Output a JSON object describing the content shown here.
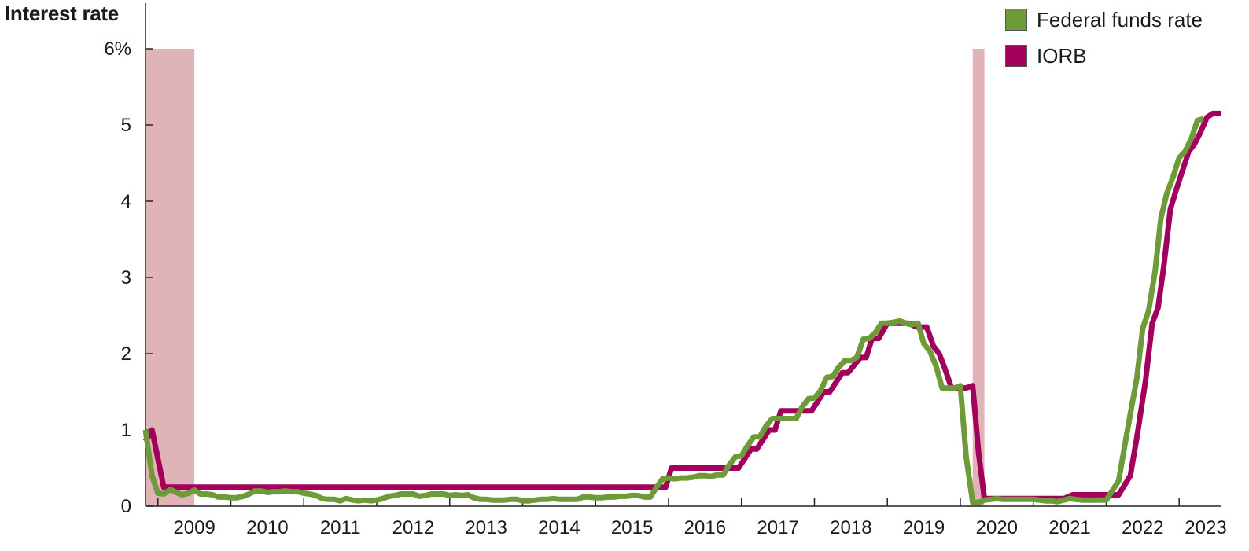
{
  "chart_data": {
    "type": "line",
    "ylabel": "Interest rate",
    "ylim": [
      0,
      6
    ],
    "y_ticks": [
      {
        "value": 0,
        "label": "0"
      },
      {
        "value": 1,
        "label": "1"
      },
      {
        "value": 2,
        "label": "2"
      },
      {
        "value": 3,
        "label": "3"
      },
      {
        "value": 4,
        "label": "4"
      },
      {
        "value": 5,
        "label": "5"
      },
      {
        "value": 6,
        "label": "6%"
      }
    ],
    "xlim": [
      2008.83,
      2023.58
    ],
    "x_ticks": [
      "2009",
      "2010",
      "2011",
      "2012",
      "2013",
      "2014",
      "2015",
      "2016",
      "2017",
      "2018",
      "2019",
      "2020",
      "2021",
      "2022",
      "2023"
    ],
    "recessions": [
      {
        "start": 2008.83,
        "end": 2009.5
      },
      {
        "start": 2020.17,
        "end": 2020.33
      }
    ],
    "recession_color": "#e0b4b6",
    "series": [
      {
        "name": "IORB",
        "color": "#a3005e",
        "points": [
          [
            2008.83,
            0.85
          ],
          [
            2008.92,
            1.0
          ],
          [
            2009.08,
            0.25
          ],
          [
            2015.96,
            0.25
          ],
          [
            2016.04,
            0.5
          ],
          [
            2016.96,
            0.5
          ],
          [
            2017.13,
            0.75
          ],
          [
            2017.21,
            0.75
          ],
          [
            2017.38,
            1.0
          ],
          [
            2017.46,
            1.0
          ],
          [
            2017.54,
            1.25
          ],
          [
            2017.96,
            1.25
          ],
          [
            2018.13,
            1.5
          ],
          [
            2018.21,
            1.5
          ],
          [
            2018.38,
            1.75
          ],
          [
            2018.46,
            1.75
          ],
          [
            2018.63,
            1.95
          ],
          [
            2018.71,
            1.95
          ],
          [
            2018.79,
            2.2
          ],
          [
            2018.88,
            2.2
          ],
          [
            2019.0,
            2.4
          ],
          [
            2019.29,
            2.4
          ],
          [
            2019.4,
            2.35
          ],
          [
            2019.54,
            2.35
          ],
          [
            2019.63,
            2.1
          ],
          [
            2019.71,
            2.0
          ],
          [
            2019.79,
            1.8
          ],
          [
            2019.88,
            1.55
          ],
          [
            2020.08,
            1.55
          ],
          [
            2020.17,
            1.58
          ],
          [
            2020.25,
            0.7
          ],
          [
            2020.33,
            0.1
          ],
          [
            2021.42,
            0.1
          ],
          [
            2021.54,
            0.15
          ],
          [
            2022.17,
            0.15
          ],
          [
            2022.33,
            0.4
          ],
          [
            2022.42,
            0.9
          ],
          [
            2022.54,
            1.65
          ],
          [
            2022.63,
            2.4
          ],
          [
            2022.71,
            2.6
          ],
          [
            2022.79,
            3.15
          ],
          [
            2022.88,
            3.9
          ],
          [
            2022.96,
            4.15
          ],
          [
            2023.13,
            4.65
          ],
          [
            2023.21,
            4.75
          ],
          [
            2023.29,
            4.9
          ],
          [
            2023.38,
            5.1
          ],
          [
            2023.46,
            5.15
          ],
          [
            2023.58,
            5.15
          ]
        ]
      },
      {
        "name": "Federal funds rate",
        "color": "#6f9a3a",
        "points": [
          [
            2008.83,
            1.0
          ],
          [
            2008.92,
            0.4
          ],
          [
            2009.0,
            0.17
          ],
          [
            2009.08,
            0.16
          ],
          [
            2009.17,
            0.22
          ],
          [
            2009.25,
            0.18
          ],
          [
            2009.33,
            0.15
          ],
          [
            2009.42,
            0.17
          ],
          [
            2009.5,
            0.21
          ],
          [
            2009.58,
            0.16
          ],
          [
            2009.67,
            0.16
          ],
          [
            2009.75,
            0.15
          ],
          [
            2009.83,
            0.12
          ],
          [
            2009.92,
            0.12
          ],
          [
            2010.0,
            0.11
          ],
          [
            2010.08,
            0.11
          ],
          [
            2010.17,
            0.13
          ],
          [
            2010.25,
            0.16
          ],
          [
            2010.33,
            0.2
          ],
          [
            2010.42,
            0.2
          ],
          [
            2010.5,
            0.18
          ],
          [
            2010.58,
            0.19
          ],
          [
            2010.67,
            0.19
          ],
          [
            2010.75,
            0.2
          ],
          [
            2010.83,
            0.19
          ],
          [
            2010.92,
            0.19
          ],
          [
            2011.0,
            0.17
          ],
          [
            2011.08,
            0.16
          ],
          [
            2011.17,
            0.14
          ],
          [
            2011.25,
            0.1
          ],
          [
            2011.33,
            0.09
          ],
          [
            2011.42,
            0.09
          ],
          [
            2011.5,
            0.07
          ],
          [
            2011.58,
            0.1
          ],
          [
            2011.67,
            0.08
          ],
          [
            2011.75,
            0.07
          ],
          [
            2011.83,
            0.08
          ],
          [
            2011.92,
            0.07
          ],
          [
            2012.0,
            0.08
          ],
          [
            2012.08,
            0.1
          ],
          [
            2012.17,
            0.13
          ],
          [
            2012.25,
            0.14
          ],
          [
            2012.33,
            0.16
          ],
          [
            2012.42,
            0.16
          ],
          [
            2012.5,
            0.16
          ],
          [
            2012.58,
            0.13
          ],
          [
            2012.67,
            0.14
          ],
          [
            2012.75,
            0.16
          ],
          [
            2012.83,
            0.16
          ],
          [
            2012.92,
            0.16
          ],
          [
            2013.0,
            0.14
          ],
          [
            2013.08,
            0.15
          ],
          [
            2013.17,
            0.14
          ],
          [
            2013.25,
            0.15
          ],
          [
            2013.33,
            0.11
          ],
          [
            2013.42,
            0.09
          ],
          [
            2013.5,
            0.09
          ],
          [
            2013.58,
            0.08
          ],
          [
            2013.67,
            0.08
          ],
          [
            2013.75,
            0.08
          ],
          [
            2013.83,
            0.09
          ],
          [
            2013.92,
            0.09
          ],
          [
            2014.0,
            0.07
          ],
          [
            2014.08,
            0.07
          ],
          [
            2014.17,
            0.08
          ],
          [
            2014.25,
            0.09
          ],
          [
            2014.33,
            0.09
          ],
          [
            2014.42,
            0.1
          ],
          [
            2014.5,
            0.09
          ],
          [
            2014.58,
            0.09
          ],
          [
            2014.67,
            0.09
          ],
          [
            2014.75,
            0.09
          ],
          [
            2014.83,
            0.12
          ],
          [
            2014.92,
            0.12
          ],
          [
            2015.0,
            0.11
          ],
          [
            2015.08,
            0.11
          ],
          [
            2015.17,
            0.12
          ],
          [
            2015.25,
            0.12
          ],
          [
            2015.33,
            0.13
          ],
          [
            2015.42,
            0.13
          ],
          [
            2015.5,
            0.14
          ],
          [
            2015.58,
            0.14
          ],
          [
            2015.67,
            0.12
          ],
          [
            2015.75,
            0.12
          ],
          [
            2015.83,
            0.24
          ],
          [
            2015.92,
            0.36
          ],
          [
            2016.0,
            0.37
          ],
          [
            2016.08,
            0.36
          ],
          [
            2016.17,
            0.37
          ],
          [
            2016.25,
            0.37
          ],
          [
            2016.33,
            0.38
          ],
          [
            2016.42,
            0.4
          ],
          [
            2016.5,
            0.4
          ],
          [
            2016.58,
            0.39
          ],
          [
            2016.67,
            0.41
          ],
          [
            2016.75,
            0.41
          ],
          [
            2016.83,
            0.54
          ],
          [
            2016.92,
            0.65
          ],
          [
            2017.0,
            0.66
          ],
          [
            2017.08,
            0.79
          ],
          [
            2017.17,
            0.91
          ],
          [
            2017.25,
            0.91
          ],
          [
            2017.33,
            1.04
          ],
          [
            2017.42,
            1.15
          ],
          [
            2017.5,
            1.15
          ],
          [
            2017.58,
            1.15
          ],
          [
            2017.67,
            1.15
          ],
          [
            2017.75,
            1.15
          ],
          [
            2017.83,
            1.3
          ],
          [
            2017.92,
            1.41
          ],
          [
            2018.0,
            1.42
          ],
          [
            2018.08,
            1.51
          ],
          [
            2018.17,
            1.69
          ],
          [
            2018.25,
            1.7
          ],
          [
            2018.33,
            1.82
          ],
          [
            2018.42,
            1.91
          ],
          [
            2018.5,
            1.91
          ],
          [
            2018.58,
            1.95
          ],
          [
            2018.67,
            2.19
          ],
          [
            2018.75,
            2.2
          ],
          [
            2018.83,
            2.27
          ],
          [
            2018.92,
            2.4
          ],
          [
            2019.0,
            2.4
          ],
          [
            2019.08,
            2.41
          ],
          [
            2019.17,
            2.43
          ],
          [
            2019.25,
            2.4
          ],
          [
            2019.33,
            2.38
          ],
          [
            2019.42,
            2.4
          ],
          [
            2019.5,
            2.13
          ],
          [
            2019.58,
            2.04
          ],
          [
            2019.67,
            1.83
          ],
          [
            2019.75,
            1.55
          ],
          [
            2019.83,
            1.55
          ],
          [
            2019.92,
            1.55
          ],
          [
            2020.0,
            1.58
          ],
          [
            2020.08,
            0.65
          ],
          [
            2020.17,
            0.05
          ],
          [
            2020.25,
            0.05
          ],
          [
            2020.33,
            0.08
          ],
          [
            2020.42,
            0.09
          ],
          [
            2020.5,
            0.1
          ],
          [
            2020.58,
            0.09
          ],
          [
            2020.67,
            0.09
          ],
          [
            2020.75,
            0.09
          ],
          [
            2020.83,
            0.09
          ],
          [
            2020.92,
            0.09
          ],
          [
            2021.0,
            0.09
          ],
          [
            2021.08,
            0.08
          ],
          [
            2021.17,
            0.07
          ],
          [
            2021.25,
            0.07
          ],
          [
            2021.33,
            0.06
          ],
          [
            2021.42,
            0.08
          ],
          [
            2021.5,
            0.1
          ],
          [
            2021.58,
            0.09
          ],
          [
            2021.67,
            0.08
          ],
          [
            2021.75,
            0.08
          ],
          [
            2021.83,
            0.08
          ],
          [
            2021.92,
            0.08
          ],
          [
            2022.0,
            0.08
          ],
          [
            2022.08,
            0.2
          ],
          [
            2022.17,
            0.33
          ],
          [
            2022.25,
            0.77
          ],
          [
            2022.33,
            1.21
          ],
          [
            2022.42,
            1.68
          ],
          [
            2022.5,
            2.33
          ],
          [
            2022.58,
            2.56
          ],
          [
            2022.67,
            3.08
          ],
          [
            2022.75,
            3.78
          ],
          [
            2022.83,
            4.1
          ],
          [
            2022.92,
            4.33
          ],
          [
            2023.0,
            4.57
          ],
          [
            2023.08,
            4.65
          ],
          [
            2023.17,
            4.83
          ],
          [
            2023.25,
            5.06
          ],
          [
            2023.33,
            5.08
          ]
        ]
      }
    ],
    "legend": [
      {
        "label": "Federal funds rate",
        "color": "#6f9a3a"
      },
      {
        "label": "IORB",
        "color": "#a3005e"
      }
    ]
  }
}
